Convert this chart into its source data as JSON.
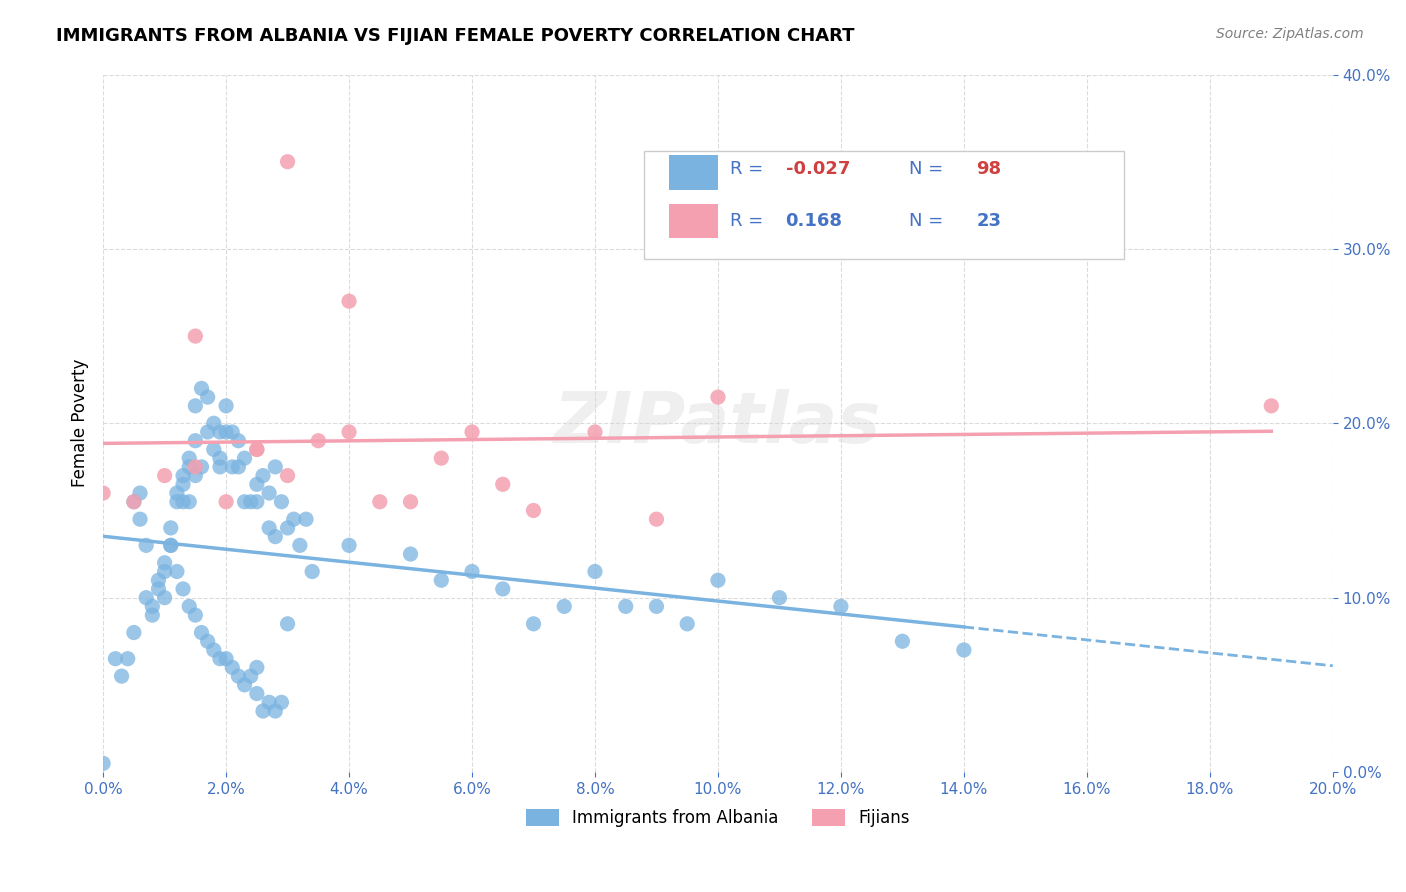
{
  "title": "IMMIGRANTS FROM ALBANIA VS FIJIAN FEMALE POVERTY CORRELATION CHART",
  "source": "Source: ZipAtlas.com",
  "xlabel_ticks": [
    "0.0%",
    "2.0%",
    "4.0%",
    "6.0%",
    "8.0%",
    "10.0%",
    "12.0%",
    "14.0%",
    "16.0%",
    "18.0%",
    "20.0%"
  ],
  "ylabel_ticks": [
    "0.0%",
    "10.0%",
    "20.0%",
    "30.0%",
    "40.0%"
  ],
  "ylabel_label": "Female Poverty",
  "xlabel_label": "",
  "xlim": [
    0.0,
    0.2
  ],
  "ylim": [
    0.0,
    0.4
  ],
  "legend_r1": "R = -0.027",
  "legend_n1": "N = 98",
  "legend_r2": "R =  0.168",
  "legend_n2": "N = 23",
  "color_albania": "#7ab3e0",
  "color_fijian": "#f4a0b0",
  "color_text_blue": "#4472c4",
  "color_neg": "#d04040",
  "color_pos": "#4472c4",
  "albania_scatter_x": [
    0.005,
    0.007,
    0.008,
    0.009,
    0.01,
    0.01,
    0.011,
    0.011,
    0.012,
    0.012,
    0.013,
    0.013,
    0.013,
    0.014,
    0.014,
    0.014,
    0.015,
    0.015,
    0.015,
    0.016,
    0.016,
    0.017,
    0.017,
    0.018,
    0.018,
    0.019,
    0.019,
    0.019,
    0.02,
    0.02,
    0.021,
    0.021,
    0.022,
    0.022,
    0.023,
    0.023,
    0.024,
    0.025,
    0.025,
    0.026,
    0.027,
    0.027,
    0.028,
    0.028,
    0.029,
    0.03,
    0.031,
    0.032,
    0.033,
    0.034,
    0.005,
    0.006,
    0.006,
    0.007,
    0.008,
    0.009,
    0.01,
    0.011,
    0.012,
    0.013,
    0.014,
    0.015,
    0.016,
    0.017,
    0.018,
    0.019,
    0.02,
    0.021,
    0.022,
    0.023,
    0.024,
    0.025,
    0.025,
    0.026,
    0.027,
    0.028,
    0.029,
    0.03,
    0.04,
    0.05,
    0.055,
    0.06,
    0.065,
    0.07,
    0.075,
    0.08,
    0.085,
    0.09,
    0.095,
    0.1,
    0.11,
    0.12,
    0.13,
    0.14,
    0.0,
    0.003,
    0.004,
    0.002
  ],
  "albania_scatter_y": [
    0.08,
    0.1,
    0.09,
    0.11,
    0.12,
    0.1,
    0.13,
    0.14,
    0.155,
    0.16,
    0.17,
    0.155,
    0.165,
    0.18,
    0.155,
    0.175,
    0.21,
    0.19,
    0.17,
    0.22,
    0.175,
    0.195,
    0.215,
    0.185,
    0.2,
    0.18,
    0.175,
    0.195,
    0.195,
    0.21,
    0.175,
    0.195,
    0.19,
    0.175,
    0.155,
    0.18,
    0.155,
    0.155,
    0.165,
    0.17,
    0.16,
    0.14,
    0.175,
    0.135,
    0.155,
    0.14,
    0.145,
    0.13,
    0.145,
    0.115,
    0.155,
    0.16,
    0.145,
    0.13,
    0.095,
    0.105,
    0.115,
    0.13,
    0.115,
    0.105,
    0.095,
    0.09,
    0.08,
    0.075,
    0.07,
    0.065,
    0.065,
    0.06,
    0.055,
    0.05,
    0.055,
    0.045,
    0.06,
    0.035,
    0.04,
    0.035,
    0.04,
    0.085,
    0.13,
    0.125,
    0.11,
    0.115,
    0.105,
    0.085,
    0.095,
    0.115,
    0.095,
    0.095,
    0.085,
    0.11,
    0.1,
    0.095,
    0.075,
    0.07,
    0.005,
    0.055,
    0.065,
    0.065
  ],
  "fijian_scatter_x": [
    0.0,
    0.005,
    0.01,
    0.015,
    0.015,
    0.02,
    0.025,
    0.025,
    0.03,
    0.03,
    0.035,
    0.04,
    0.04,
    0.045,
    0.05,
    0.055,
    0.06,
    0.065,
    0.07,
    0.08,
    0.09,
    0.1,
    0.19
  ],
  "fijian_scatter_y": [
    0.16,
    0.155,
    0.17,
    0.175,
    0.25,
    0.155,
    0.185,
    0.185,
    0.17,
    0.35,
    0.19,
    0.27,
    0.195,
    0.155,
    0.155,
    0.18,
    0.195,
    0.165,
    0.15,
    0.195,
    0.145,
    0.215,
    0.21
  ],
  "watermark": "ZIPatlas",
  "background_color": "#ffffff",
  "grid_color": "#cccccc",
  "axis_color": "#cccccc"
}
